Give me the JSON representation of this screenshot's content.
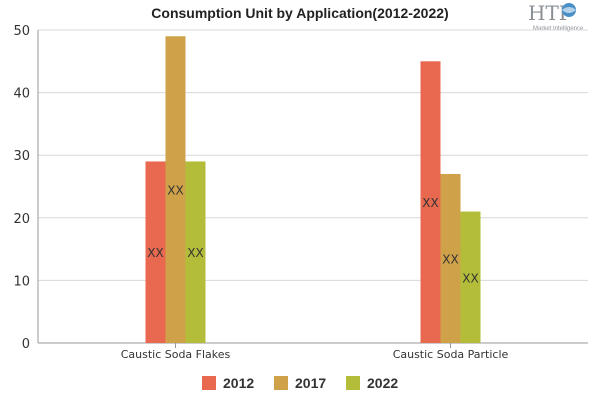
{
  "chart_data": {
    "type": "bar",
    "title": "Consumption Unit by  Application(2012-2022)",
    "categories": [
      "Caustic Soda Flakes",
      "Caustic Soda Particle"
    ],
    "series": [
      {
        "name": "2012",
        "color": "#e8694f",
        "values": [
          29,
          45
        ],
        "labels": [
          "XX",
          "XX"
        ]
      },
      {
        "name": "2017",
        "color": "#cfa24a",
        "values": [
          49,
          27
        ],
        "labels": [
          "XX",
          "XX"
        ]
      },
      {
        "name": "2022",
        "color": "#b3bd3a",
        "values": [
          29,
          21
        ],
        "labels": [
          "XX",
          "XX"
        ]
      }
    ],
    "ylim": [
      0,
      50
    ],
    "yticks": [
      0,
      10,
      20,
      30,
      40,
      50
    ],
    "grid": true,
    "legend_position": "bottom"
  },
  "logo": {
    "text": "HTF",
    "subtext": "Market Intelligence",
    "icon": "globe-icon"
  }
}
